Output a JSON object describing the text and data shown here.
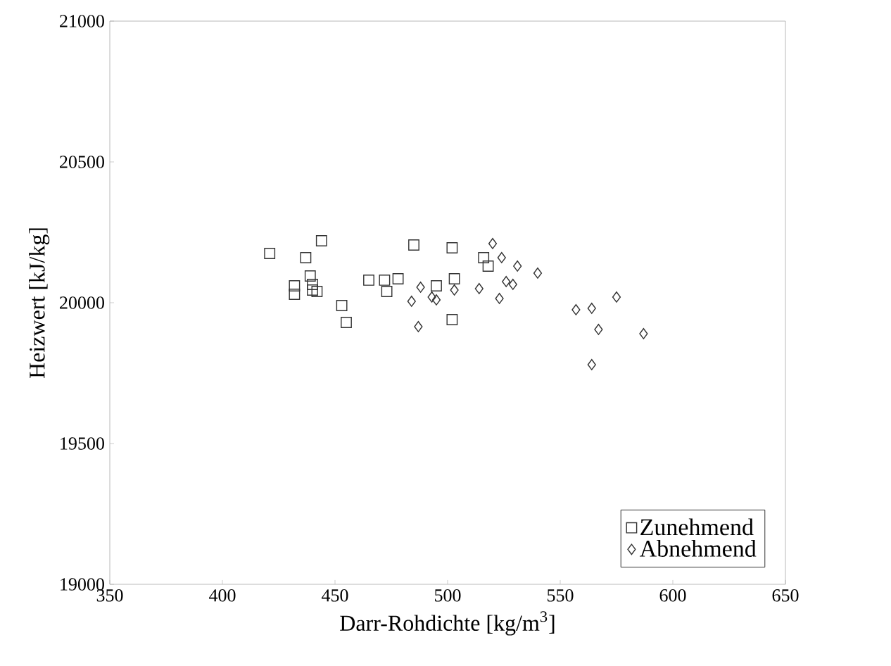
{
  "chart_data": {
    "type": "scatter",
    "xlabel": "Darr-Rohdichte [kg/m$^{3}$]",
    "ylabel": "Heizwert [kJ/kg]",
    "xlim": [
      350,
      650
    ],
    "xticks": [
      350,
      400,
      450,
      500,
      550,
      600,
      650
    ],
    "ylim": [
      19000,
      21000
    ],
    "yticks": [
      19000,
      19500,
      20000,
      20500,
      21000
    ],
    "grid": false,
    "legend": "bottom right",
    "series": [
      {
        "name": "Zunehmend",
        "color": "#333333",
        "marker": "square",
        "x": [
          421,
          444,
          437,
          439,
          432,
          432,
          440,
          440,
          442,
          453,
          455,
          465,
          472,
          473,
          478,
          485,
          495,
          502,
          503,
          502,
          516,
          518
        ],
        "values": [
          20175,
          20220,
          20160,
          20095,
          20060,
          20030,
          20065,
          20045,
          20040,
          19990,
          19930,
          20080,
          20080,
          20040,
          20085,
          20205,
          20060,
          20195,
          20085,
          19940,
          20160,
          20130
        ]
      },
      {
        "name": "Abnehmend",
        "color": "#333333",
        "marker": "diamond",
        "x": [
          520,
          524,
          531,
          540,
          526,
          529,
          514,
          523,
          503,
          488,
          493,
          495,
          484,
          487,
          557,
          564,
          575,
          567,
          587,
          564
        ],
        "values": [
          20210,
          20160,
          20130,
          20105,
          20075,
          20065,
          20050,
          20015,
          20045,
          20055,
          20020,
          20010,
          20005,
          19915,
          19975,
          19980,
          20020,
          19905,
          19890,
          19780
        ]
      }
    ]
  }
}
